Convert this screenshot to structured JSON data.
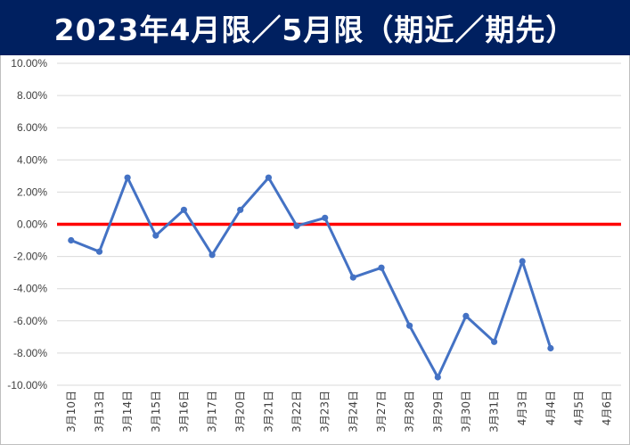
{
  "chart_data": {
    "type": "line",
    "title": "2023年4月限／5月限（期近／期先）",
    "categories": [
      "3月10日",
      "3月13日",
      "3月14日",
      "3月15日",
      "3月16日",
      "3月17日",
      "3月20日",
      "3月21日",
      "3月22日",
      "3月23日",
      "3月24日",
      "3月27日",
      "3月28日",
      "3月29日",
      "3月30日",
      "3月31日",
      "4月3日",
      "4月4日",
      "4月5日",
      "4月6日"
    ],
    "series": [
      {
        "values": [
          -1.0,
          -1.7,
          2.9,
          -0.7,
          0.9,
          -1.9,
          0.9,
          2.9,
          -0.1,
          0.4,
          -3.3,
          -2.7,
          -6.3,
          -9.5,
          -5.7,
          -7.3,
          -2.3,
          -7.7,
          null,
          null
        ]
      }
    ],
    "yticks": [
      "10.00%",
      "8.00%",
      "6.00%",
      "4.00%",
      "2.00%",
      "0.00%",
      "-2.00%",
      "-4.00%",
      "-6.00%",
      "-8.00%",
      "-10.00%"
    ],
    "ylim": [
      -10,
      10
    ],
    "reference_line": {
      "value": 0
    },
    "grid": true,
    "colors": {
      "title_bg": "#002060",
      "line": "#4472C4",
      "reference": "#FF0000",
      "grid": "#D9D9D9"
    }
  }
}
